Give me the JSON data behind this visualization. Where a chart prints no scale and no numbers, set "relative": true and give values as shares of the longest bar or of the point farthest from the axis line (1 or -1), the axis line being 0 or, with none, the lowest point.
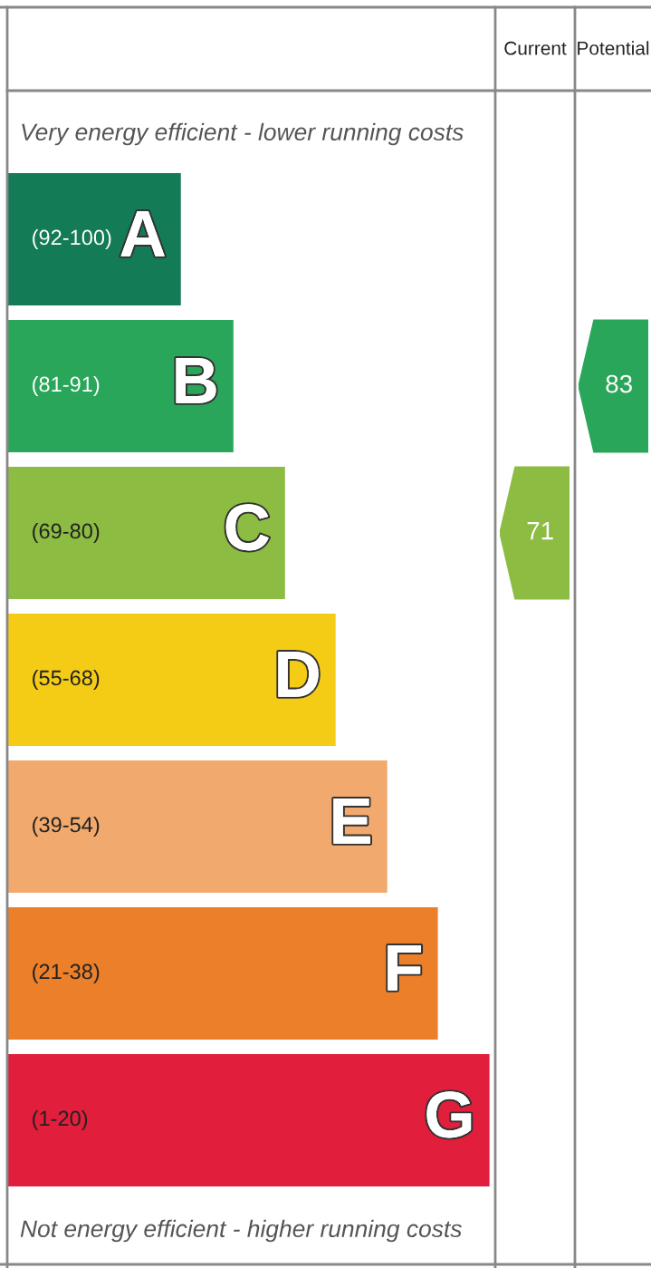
{
  "chart_data": {
    "type": "bar",
    "orientation": "horizontal",
    "relative": true,
    "categories": [
      "A",
      "B",
      "C",
      "D",
      "E",
      "F",
      "G"
    ],
    "values": [
      0.36,
      0.469,
      0.576,
      0.681,
      0.788,
      0.893,
      1
    ],
    "colors": [
      "#137b56",
      "#2aa65a",
      "#8cbc42",
      "#f5cc15",
      "#f2a96d",
      "#ec7f2a",
      "#e11e3c"
    ],
    "annotations": [
      "Very energy efficient - lower running costs",
      "Not energy efficient - higher running costs",
      "Current",
      "Potential",
      "(92-100)",
      "(81-91)",
      "(69-80)",
      "(55-68)",
      "(39-54)",
      "(21-38)",
      "(1-20)",
      "71",
      "83"
    ]
  }
}
